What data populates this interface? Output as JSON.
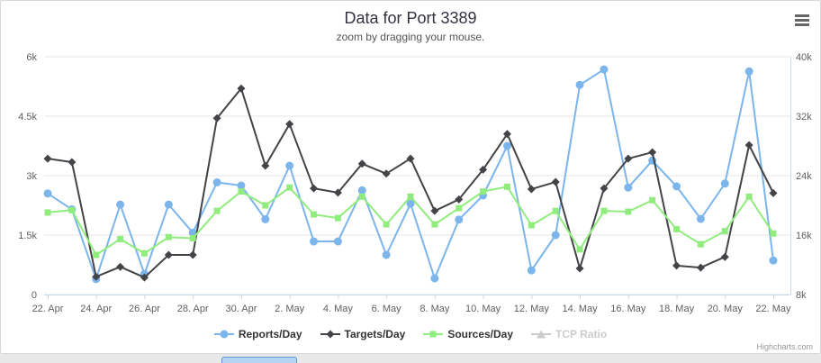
{
  "chart": {
    "title": "Data for Port 3389",
    "subtitle": "zoom by dragging your mouse.",
    "credits": "Highcharts.com"
  },
  "ui": {
    "export_menu_icon": "hamburger-menu-icon"
  },
  "colors": {
    "axis_line": "#c9d9ea",
    "gridline": "#e6e6e6",
    "axis_text": "#606060",
    "disabled_legend": "#cccccc"
  },
  "chart_data": {
    "type": "line",
    "x": [
      "22 Apr",
      "23 Apr",
      "24 Apr",
      "25 Apr",
      "26 Apr",
      "27 Apr",
      "28 Apr",
      "29 Apr",
      "30 Apr",
      "1 May",
      "2 May",
      "3 May",
      "4 May",
      "5 May",
      "6 May",
      "7 May",
      "8 May",
      "9 May",
      "10 May",
      "11 May",
      "12 May",
      "13 May",
      "14 May",
      "15 May",
      "16 May",
      "17 May",
      "18 May",
      "19 May",
      "20 May",
      "21 May",
      "22 May"
    ],
    "x_tick_labels": [
      "22. Apr",
      "24. Apr",
      "26. Apr",
      "28. Apr",
      "30. Apr",
      "2. May",
      "4. May",
      "6. May",
      "8. May",
      "10. May",
      "12. May",
      "14. May",
      "16. May",
      "18. May",
      "20. May",
      "22. May"
    ],
    "y_axis_left": {
      "labels": [
        "0",
        "1.5k",
        "3k",
        "4.5k",
        "6k"
      ],
      "values": [
        0,
        1500,
        3000,
        4500,
        6000
      ],
      "range": [
        0,
        6000
      ]
    },
    "y_axis_right": {
      "labels": [
        "8k",
        "16k",
        "24k",
        "32k",
        "40k"
      ],
      "range": [
        8000,
        40000
      ]
    },
    "grid": true,
    "legend_position": "bottom",
    "series": [
      {
        "name": "Reports/Day",
        "color": "#7cb5ec",
        "marker": "circle",
        "disabled": false,
        "values": [
          2550,
          2150,
          390,
          2270,
          520,
          2270,
          1560,
          2830,
          2750,
          1900,
          3250,
          1340,
          1340,
          2630,
          1000,
          2290,
          410,
          1890,
          2500,
          3750,
          610,
          1500,
          5290,
          5680,
          2700,
          3380,
          2730,
          1910,
          2800,
          5630,
          860
        ]
      },
      {
        "name": "Targets/Day",
        "color": "#434348",
        "marker": "diamond",
        "disabled": false,
        "values": [
          3430,
          3340,
          450,
          700,
          430,
          1000,
          1000,
          4450,
          5200,
          3250,
          4300,
          2680,
          2570,
          3300,
          3050,
          3430,
          2110,
          2400,
          3150,
          4050,
          2660,
          2840,
          660,
          2680,
          3430,
          3590,
          730,
          680,
          950,
          3770,
          2560
        ]
      },
      {
        "name": "Sources/Day",
        "color": "#90ed7d",
        "marker": "square",
        "disabled": false,
        "values": [
          2070,
          2130,
          1000,
          1400,
          1040,
          1450,
          1420,
          2110,
          2600,
          2250,
          2700,
          2020,
          1930,
          2470,
          1770,
          2470,
          1770,
          2180,
          2600,
          2720,
          1750,
          2110,
          1140,
          2110,
          2090,
          2380,
          1650,
          1270,
          1600,
          2470,
          1540
        ]
      },
      {
        "name": "TCP Ratio",
        "color": "#cccccc",
        "marker": "triangle",
        "disabled": true,
        "values": []
      }
    ]
  }
}
